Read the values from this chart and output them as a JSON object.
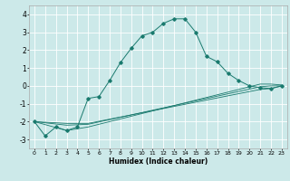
{
  "title": "",
  "xlabel": "Humidex (Indice chaleur)",
  "ylabel": "",
  "background_color": "#cce9e9",
  "grid_color": "#ffffff",
  "line_color": "#1a7a6e",
  "xlim": [
    -0.5,
    23.5
  ],
  "ylim": [
    -3.5,
    4.5
  ],
  "yticks": [
    -3,
    -2,
    -1,
    0,
    1,
    2,
    3,
    4
  ],
  "xticks": [
    0,
    1,
    2,
    3,
    4,
    5,
    6,
    7,
    8,
    9,
    10,
    11,
    12,
    13,
    14,
    15,
    16,
    17,
    18,
    19,
    20,
    21,
    22,
    23
  ],
  "line1_x": [
    0,
    1,
    2,
    3,
    4,
    5,
    6,
    7,
    8,
    9,
    10,
    11,
    12,
    13,
    14,
    15,
    16,
    17,
    18,
    19,
    20,
    21,
    22,
    23
  ],
  "line1_y": [
    -2.0,
    -2.8,
    -2.3,
    -2.5,
    -2.3,
    -0.7,
    -0.6,
    0.3,
    1.3,
    2.1,
    2.8,
    3.0,
    3.5,
    3.75,
    3.75,
    3.0,
    1.65,
    1.35,
    0.7,
    0.3,
    0.0,
    -0.1,
    -0.15,
    0.0
  ],
  "line2_x": [
    0,
    3,
    5,
    21,
    22,
    23
  ],
  "line2_y": [
    -2.0,
    -2.1,
    -2.1,
    -0.2,
    -0.15,
    0.0
  ],
  "line3_x": [
    0,
    3,
    5,
    21,
    22,
    23
  ],
  "line3_y": [
    -2.0,
    -2.2,
    -2.15,
    -0.05,
    0.0,
    0.0
  ],
  "line4_x": [
    0,
    3,
    5,
    21,
    22,
    23
  ],
  "line4_y": [
    -2.0,
    -2.5,
    -2.3,
    0.1,
    0.1,
    0.05
  ]
}
